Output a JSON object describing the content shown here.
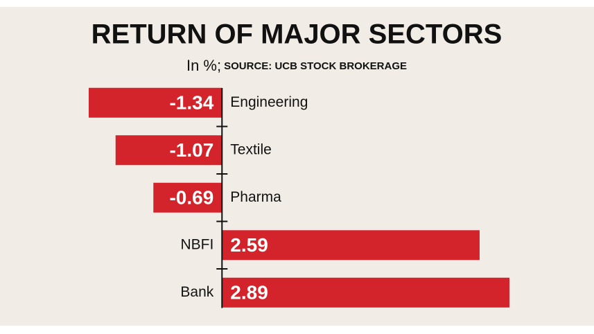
{
  "chart_data": {
    "type": "hbar",
    "title": "RETURN OF MAJOR SECTORS",
    "subtitle": "In %;",
    "source": "SOURCE: UCB STOCK BROKERAGE",
    "categories": [
      "Engineering",
      "Textile",
      "Pharma",
      "NBFI",
      "Bank"
    ],
    "values": [
      -1.34,
      -1.07,
      -0.69,
      2.59,
      2.89
    ],
    "color": "#d3232b"
  }
}
